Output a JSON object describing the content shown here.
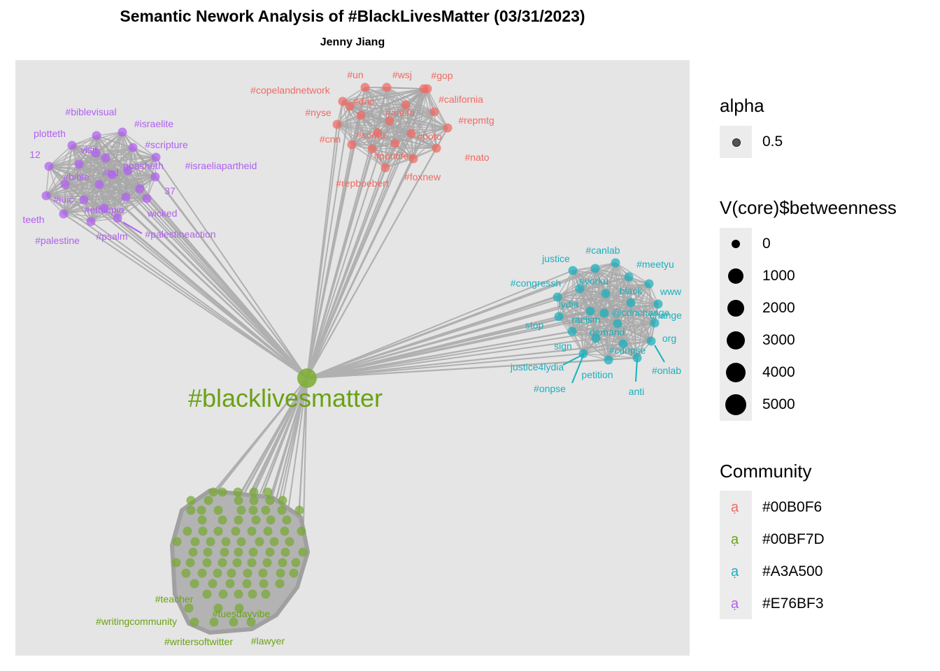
{
  "title": "Semantic Nework Analysis of #BlackLivesMatter (03/31/2023)",
  "subtitle": "Jenny Jiang",
  "hub": {
    "label": "#blacklivesmatter",
    "color": "#6aa214"
  },
  "communities": [
    {
      "id": "red",
      "color": "#f06a62",
      "labels": [
        "#un",
        "#wsj",
        "#gop",
        "#copelandnetwork",
        "#california",
        "#dnc",
        "#nyse",
        "#antifa",
        "#repmtg",
        "#poto",
        "#cnn",
        "#scotu",
        "#nato",
        "#pontifex",
        "#repboebert",
        "#foxnew"
      ]
    },
    {
      "id": "purple",
      "color": "#b05ff0",
      "labels": [
        "#biblevisual",
        "#israelite",
        "plotteth",
        "visit",
        "#scripture",
        "12",
        "goasheth",
        "#israeliapartheid",
        "#bd",
        "#bible",
        "37",
        "#iuic",
        "#ethiopia",
        "wicked",
        "teeth",
        "#palestineaction",
        "#palestine",
        "#psalm"
      ]
    },
    {
      "id": "teal",
      "color": "#19b0bd",
      "labels": [
        "#canlab",
        "justice",
        "#meetyu",
        "#yorku",
        "#congressh",
        "black",
        "www",
        "lydia",
        "@cdnchange",
        "change",
        "racism",
        "stop",
        "demand",
        "org",
        "sign",
        "#cdnpse",
        "justice4lydia",
        "#onlab",
        "petition",
        "#onpse",
        "anti"
      ]
    },
    {
      "id": "green",
      "color": "#6aa214",
      "labels": [
        "#teacher",
        "#tuesdayvibe",
        "#writingcommunity",
        "#writersoftwitter",
        "#lawyer"
      ]
    }
  ],
  "legend": {
    "alpha": {
      "title": "alpha",
      "value": "0.5"
    },
    "betweenness": {
      "title": "V(core)$betweenness",
      "values": [
        "0",
        "1000",
        "2000",
        "3000",
        "4000",
        "5000"
      ]
    },
    "community": {
      "title": "Community",
      "entries": [
        {
          "label": "#00B0F6",
          "color": "#f06a62"
        },
        {
          "label": "#00BF7D",
          "color": "#6aa214"
        },
        {
          "label": "#A3A500",
          "color": "#19b0bd"
        },
        {
          "label": "#E76BF3",
          "color": "#b05ff0"
        }
      ]
    }
  }
}
